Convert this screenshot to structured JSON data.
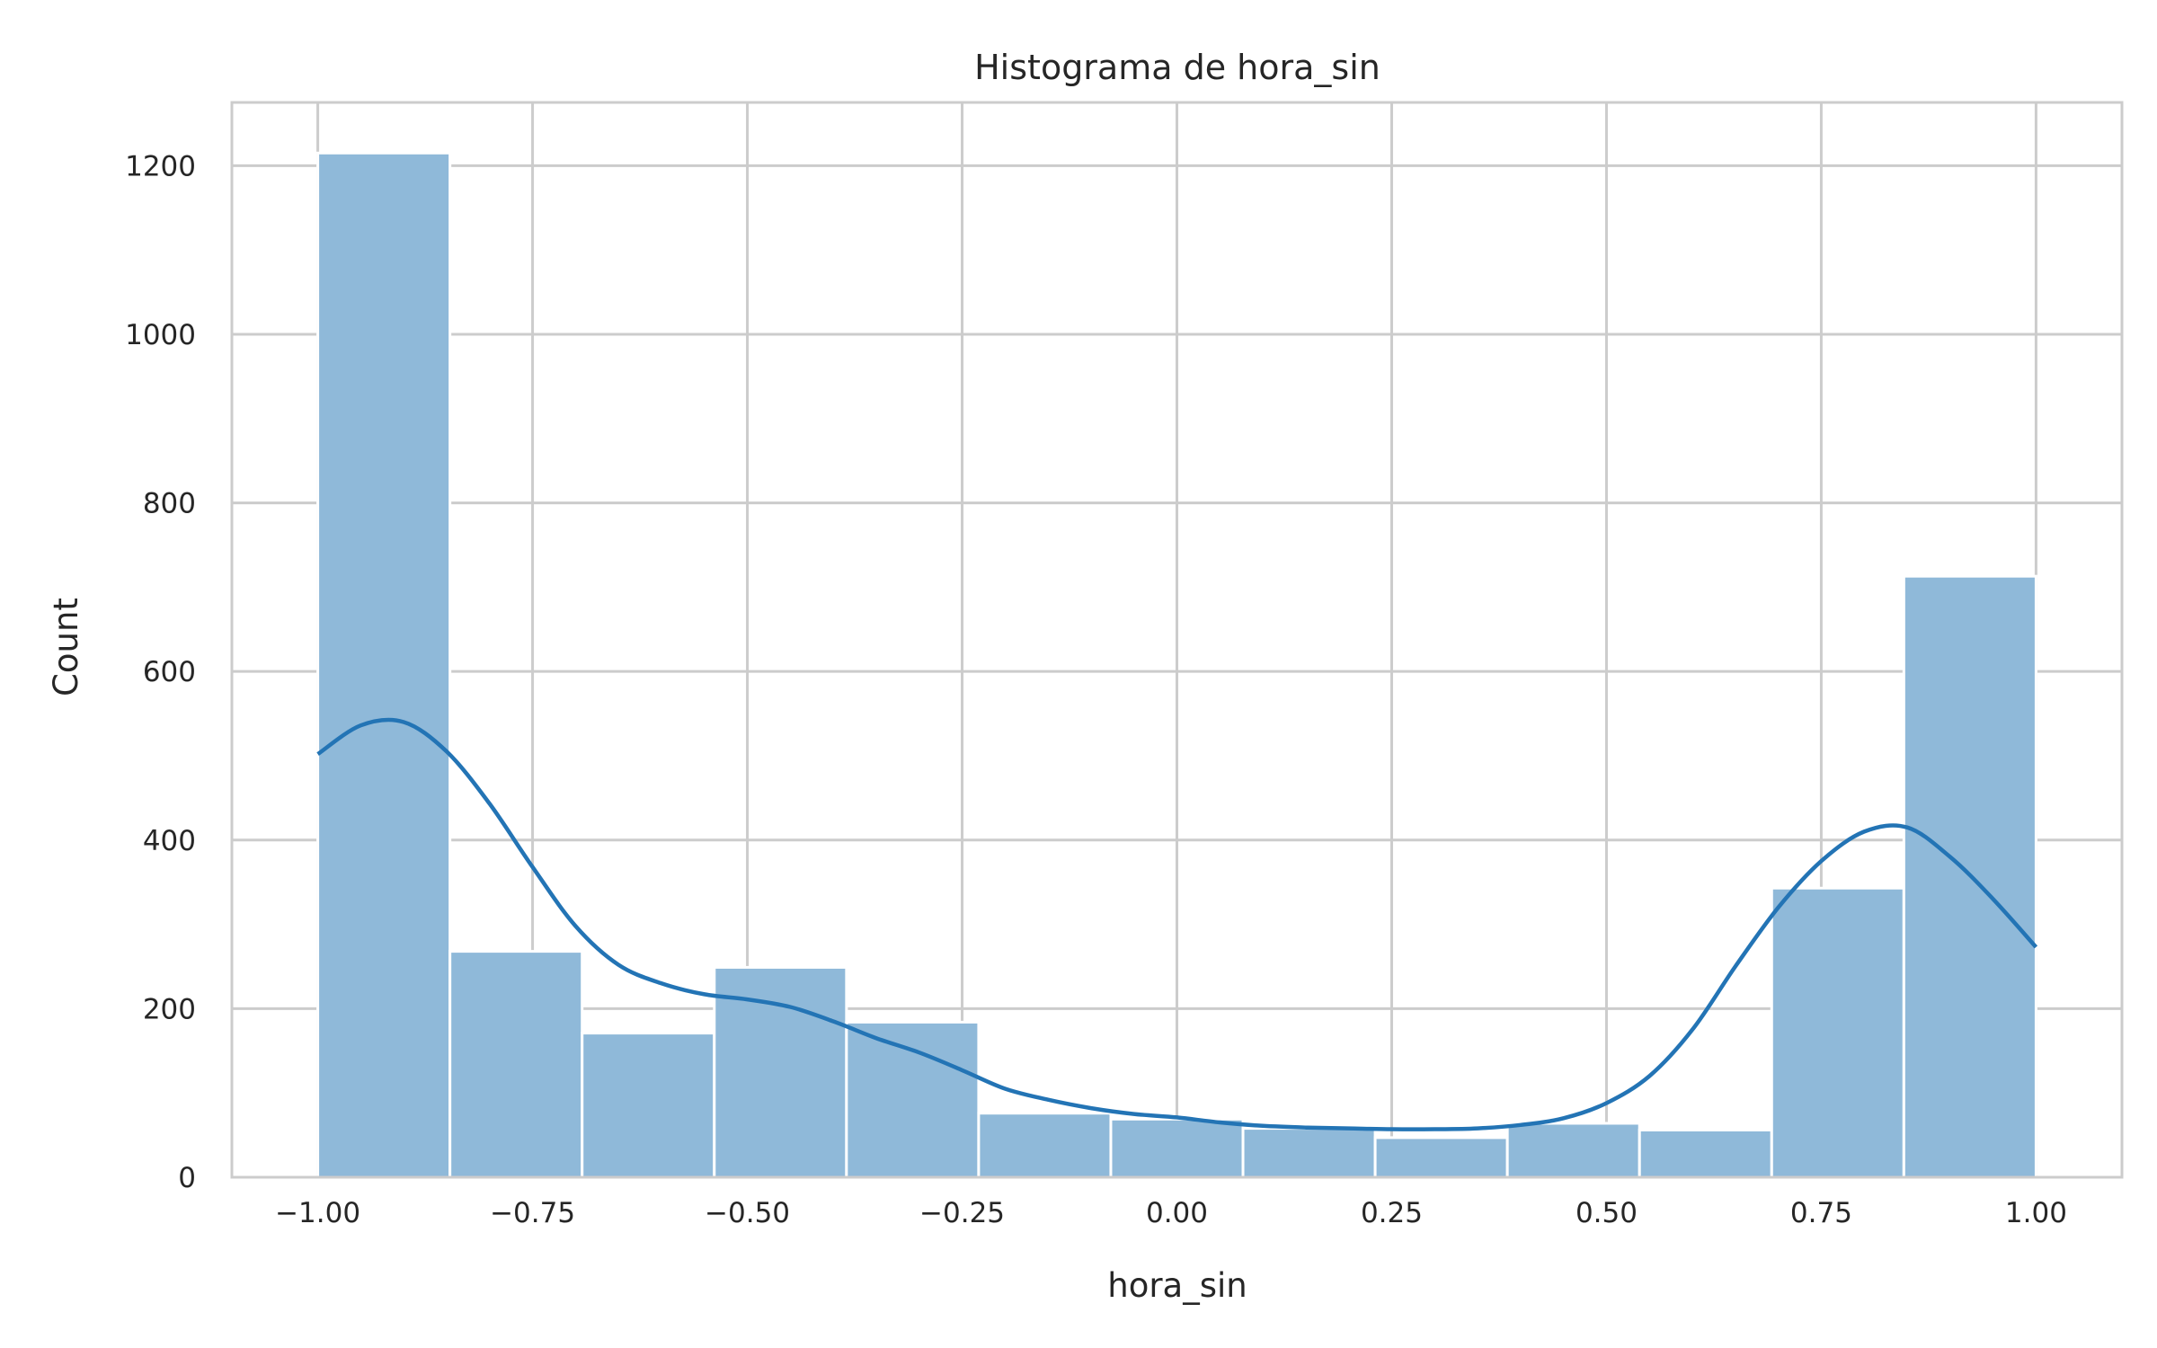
{
  "chart_data": {
    "type": "bar",
    "title": "Histograma de hora_sin",
    "xlabel": "hora_sin",
    "ylabel": "Count",
    "xlim": [
      -1.1,
      1.1
    ],
    "ylim": [
      0,
      1275
    ],
    "xticks": [
      -1.0,
      -0.75,
      -0.5,
      -0.25,
      0.0,
      0.25,
      0.5,
      0.75,
      1.0
    ],
    "xtick_labels": [
      "−1.00",
      "−0.75",
      "−0.50",
      "−0.25",
      "0.00",
      "0.25",
      "0.50",
      "0.75",
      "1.00"
    ],
    "yticks": [
      0,
      200,
      400,
      600,
      800,
      1000,
      1200
    ],
    "ytick_labels": [
      "0",
      "200",
      "400",
      "600",
      "800",
      "1000",
      "1200"
    ],
    "grid": true,
    "bins": {
      "start": -1.0,
      "end": 1.0,
      "counts": [
        1215,
        268,
        171,
        249,
        184,
        76,
        69,
        58,
        47,
        64,
        56,
        343,
        713
      ]
    },
    "kde": {
      "x": [
        -1.0,
        -0.95,
        -0.9,
        -0.85,
        -0.8,
        -0.75,
        -0.7,
        -0.65,
        -0.6,
        -0.55,
        -0.5,
        -0.45,
        -0.4,
        -0.35,
        -0.3,
        -0.25,
        -0.2,
        -0.15,
        -0.1,
        -0.05,
        0.0,
        0.05,
        0.1,
        0.15,
        0.2,
        0.25,
        0.3,
        0.35,
        0.4,
        0.45,
        0.5,
        0.55,
        0.6,
        0.65,
        0.7,
        0.75,
        0.8,
        0.85,
        0.9,
        0.95,
        1.0
      ],
      "y": [
        502,
        536,
        540,
        505,
        443,
        368,
        298,
        252,
        230,
        217,
        211,
        202,
        185,
        165,
        148,
        127,
        105,
        92,
        82,
        75,
        71,
        65,
        61,
        59,
        58,
        57,
        57,
        58,
        62,
        70,
        88,
        120,
        175,
        250,
        320,
        375,
        410,
        415,
        380,
        330,
        273
      ]
    },
    "colors": {
      "bar": "#8fb9d9",
      "line": "#2374b5",
      "grid": "#cccccc",
      "spine": "#cccccc"
    }
  }
}
